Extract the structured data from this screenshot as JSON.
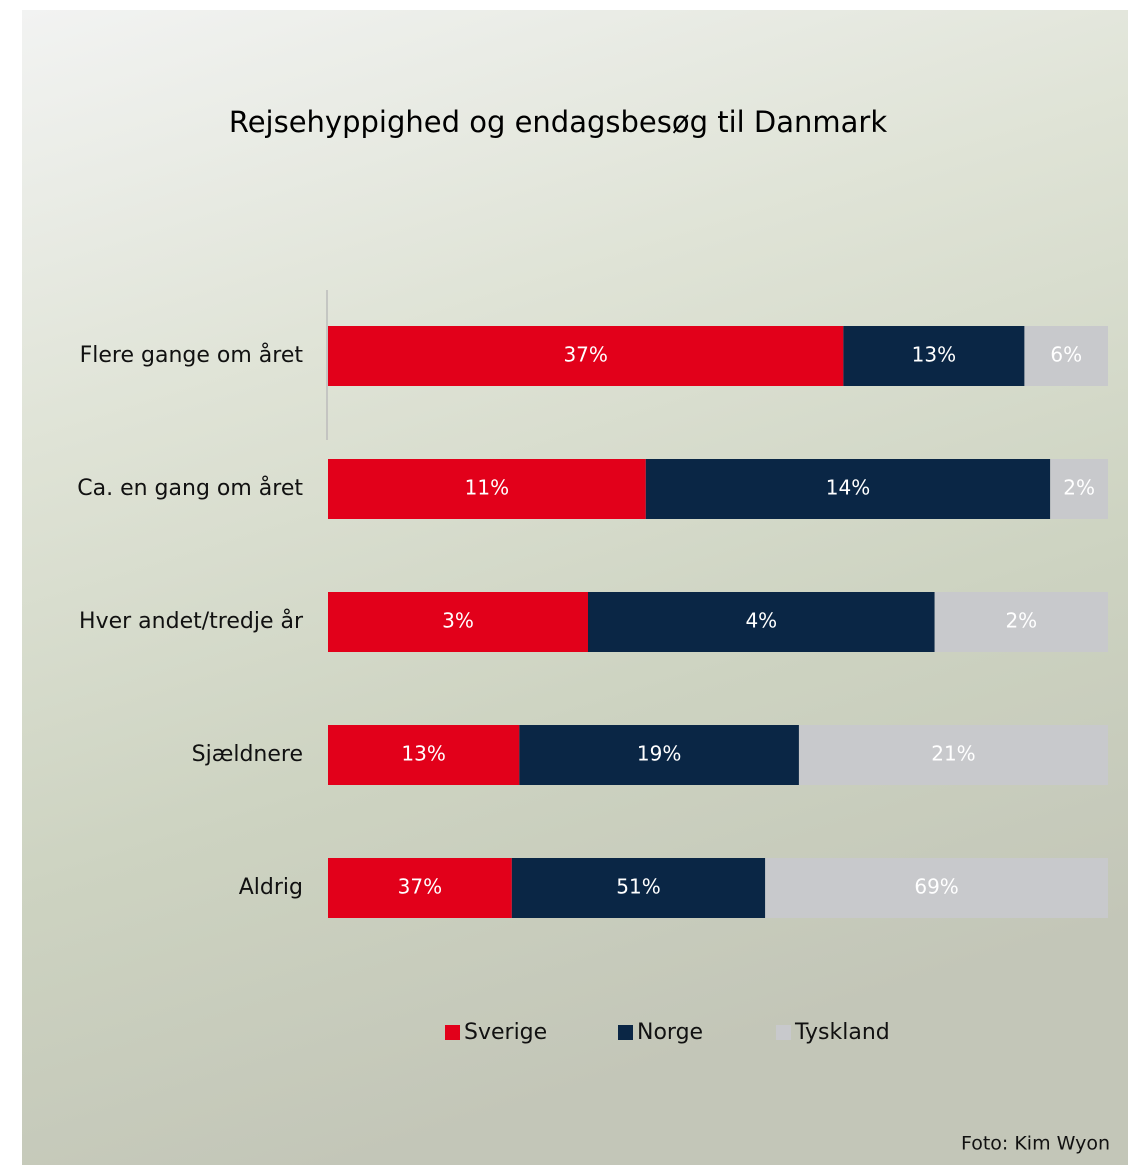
{
  "chart_data": {
    "type": "bar",
    "orientation": "horizontal",
    "stacking": "percent",
    "title": "Rejsehyppighed og endagsbesøg til Danmark",
    "categories": [
      "Flere gange om året",
      "Ca. en gang om året",
      "Hver andet/tredje år",
      "Sjældnere",
      "Aldrig"
    ],
    "series": [
      {
        "name": "Sverige",
        "color": "#e2001a",
        "values": [
          37,
          11,
          3,
          13,
          37
        ],
        "value_labels": [
          "37%",
          "11%",
          "3%",
          "13%",
          "37%"
        ]
      },
      {
        "name": "Norge",
        "color": "#0a2645",
        "values": [
          13,
          14,
          4,
          19,
          51
        ],
        "value_labels": [
          "13%",
          "14%",
          "4%",
          "19%",
          "51%"
        ]
      },
      {
        "name": "Tyskland",
        "color": "#c8c9cc",
        "values": [
          6,
          2,
          2,
          21,
          69
        ],
        "value_labels": [
          "6%",
          "2%",
          "2%",
          "21%",
          "69%"
        ]
      }
    ],
    "credit": "Foto: Kim Wyon"
  }
}
